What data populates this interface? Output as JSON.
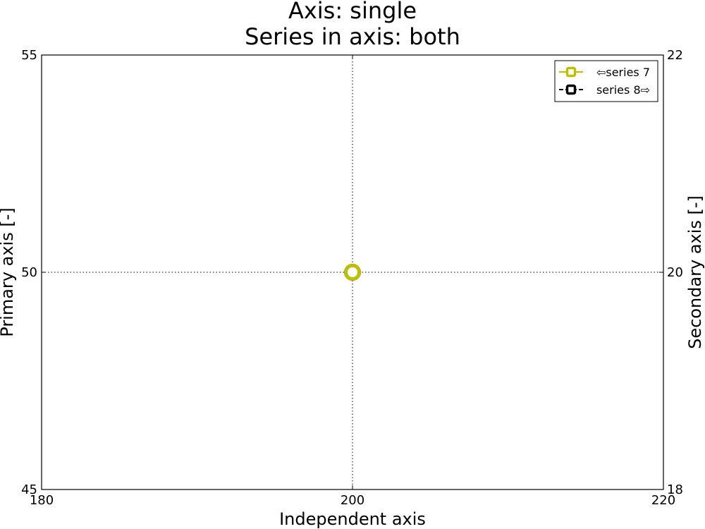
{
  "chart_data": {
    "type": "line",
    "title_lines": [
      "Axis: single",
      "Series in axis: both"
    ],
    "xlabel": "Independent axis",
    "ylabel_primary": "Primary axis [-]",
    "ylabel_secondary": "Secondary axis [-]",
    "xlim": [
      180,
      220
    ],
    "ylim_primary": [
      45,
      55
    ],
    "ylim_secondary": [
      18,
      22
    ],
    "x_ticks": [
      180,
      200,
      220
    ],
    "y_ticks_primary": [
      45,
      50,
      55
    ],
    "y_ticks_secondary": [
      18,
      20,
      22
    ],
    "x_tick_labels": [
      "180",
      "200",
      "220"
    ],
    "y_tick_labels_primary": [
      "45",
      "50",
      "55"
    ],
    "y_tick_labels_secondary": [
      "18",
      "20",
      "22"
    ],
    "grid": "dotted",
    "legend_position": "top-right",
    "series": [
      {
        "name": "⇦series 7",
        "axis": "primary",
        "color": "#bfbf00",
        "marker": "circle",
        "x": [
          200
        ],
        "y": [
          50
        ]
      },
      {
        "name": "series 8⇨",
        "axis": "secondary",
        "color": "#000000",
        "marker": "circle",
        "x": [
          200
        ],
        "y": [
          20
        ]
      }
    ]
  }
}
